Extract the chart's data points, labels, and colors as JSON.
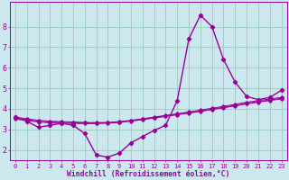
{
  "xlabel": "Windchill (Refroidissement éolien,°C)",
  "bg_color": "#cce8ee",
  "line_color": "#990099",
  "grid_color": "#99ccbb",
  "x_values": [
    0,
    1,
    2,
    3,
    4,
    5,
    6,
    7,
    8,
    9,
    10,
    11,
    12,
    13,
    14,
    15,
    16,
    17,
    18,
    19,
    20,
    21,
    22,
    23
  ],
  "series1": [
    3.6,
    3.4,
    3.1,
    3.2,
    3.3,
    3.2,
    2.8,
    1.75,
    1.65,
    1.85,
    2.35,
    2.65,
    2.95,
    3.2,
    4.4,
    7.4,
    8.55,
    8.0,
    6.4,
    5.3,
    4.6,
    4.45,
    4.55,
    4.9
  ],
  "linear1": [
    3.6,
    3.52,
    3.44,
    3.4,
    3.38,
    3.36,
    3.34,
    3.33,
    3.34,
    3.38,
    3.44,
    3.52,
    3.6,
    3.68,
    3.76,
    3.85,
    3.94,
    4.03,
    4.12,
    4.22,
    4.32,
    4.4,
    4.48,
    4.56
  ],
  "linear2": [
    3.55,
    3.47,
    3.4,
    3.36,
    3.34,
    3.33,
    3.32,
    3.31,
    3.32,
    3.36,
    3.42,
    3.5,
    3.58,
    3.66,
    3.74,
    3.82,
    3.9,
    3.99,
    4.08,
    4.17,
    4.27,
    4.35,
    4.43,
    4.51
  ],
  "linear3": [
    3.5,
    3.43,
    3.36,
    3.32,
    3.3,
    3.29,
    3.28,
    3.28,
    3.3,
    3.34,
    3.4,
    3.47,
    3.55,
    3.63,
    3.71,
    3.79,
    3.87,
    3.96,
    4.05,
    4.14,
    4.24,
    4.32,
    4.4,
    4.48
  ],
  "xlim": [
    -0.5,
    23.5
  ],
  "ylim": [
    1.5,
    9.2
  ],
  "yticks": [
    2,
    3,
    4,
    5,
    6,
    7,
    8
  ],
  "xticks": [
    0,
    1,
    2,
    3,
    4,
    5,
    6,
    7,
    8,
    9,
    10,
    11,
    12,
    13,
    14,
    15,
    16,
    17,
    18,
    19,
    20,
    21,
    22,
    23
  ]
}
